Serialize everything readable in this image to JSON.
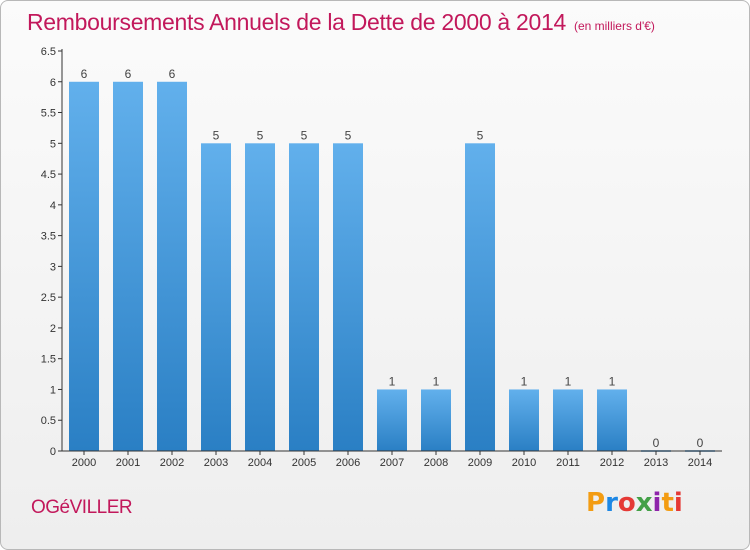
{
  "header": {
    "title": "Remboursements Annuels de la Dette de 2000 à 2014",
    "unit": "(en milliers d'€)"
  },
  "footer": {
    "commune": "OGéVILLER",
    "logo": "Proxiti",
    "logo_colors": [
      "#f39c12",
      "#1e88e5",
      "#e53935",
      "#43a047",
      "#8e24aa",
      "#f39c12",
      "#e53935"
    ]
  },
  "colors": {
    "bar_top": "#62b0ec",
    "bar_bottom": "#2a7fc4",
    "axis": "#333333",
    "grid": "#d6d6d6",
    "title": "#c2185b"
  },
  "chart_data": {
    "type": "bar",
    "title": "Remboursements Annuels de la Dette de 2000 à 2014",
    "subtitle": "(en milliers d'€)",
    "categories": [
      "2000",
      "2001",
      "2002",
      "2003",
      "2004",
      "2005",
      "2006",
      "2007",
      "2008",
      "2009",
      "2010",
      "2011",
      "2012",
      "2013",
      "2014"
    ],
    "values": [
      6,
      6,
      6,
      5,
      5,
      5,
      5,
      1,
      1,
      5,
      1,
      1,
      1,
      0,
      0
    ],
    "data_labels": [
      "6",
      "6",
      "6",
      "5",
      "5",
      "5",
      "5",
      "1",
      "1",
      "5",
      "1",
      "1",
      "1",
      "0",
      "0"
    ],
    "y_ticks": [
      0,
      0.5,
      1,
      1.5,
      2,
      2.5,
      3,
      3.5,
      4,
      4.5,
      5,
      5.5,
      6,
      6.5
    ],
    "y_tick_labels": [
      "0",
      "0.5",
      "1",
      "1.5",
      "2",
      "2.5",
      "3",
      "3.5",
      "4",
      "4.5",
      "5",
      "5.5",
      "6",
      "6.5"
    ],
    "ylim": [
      0,
      6.5
    ],
    "xlabel": "",
    "ylabel": "",
    "grid": false,
    "legend": "none"
  }
}
